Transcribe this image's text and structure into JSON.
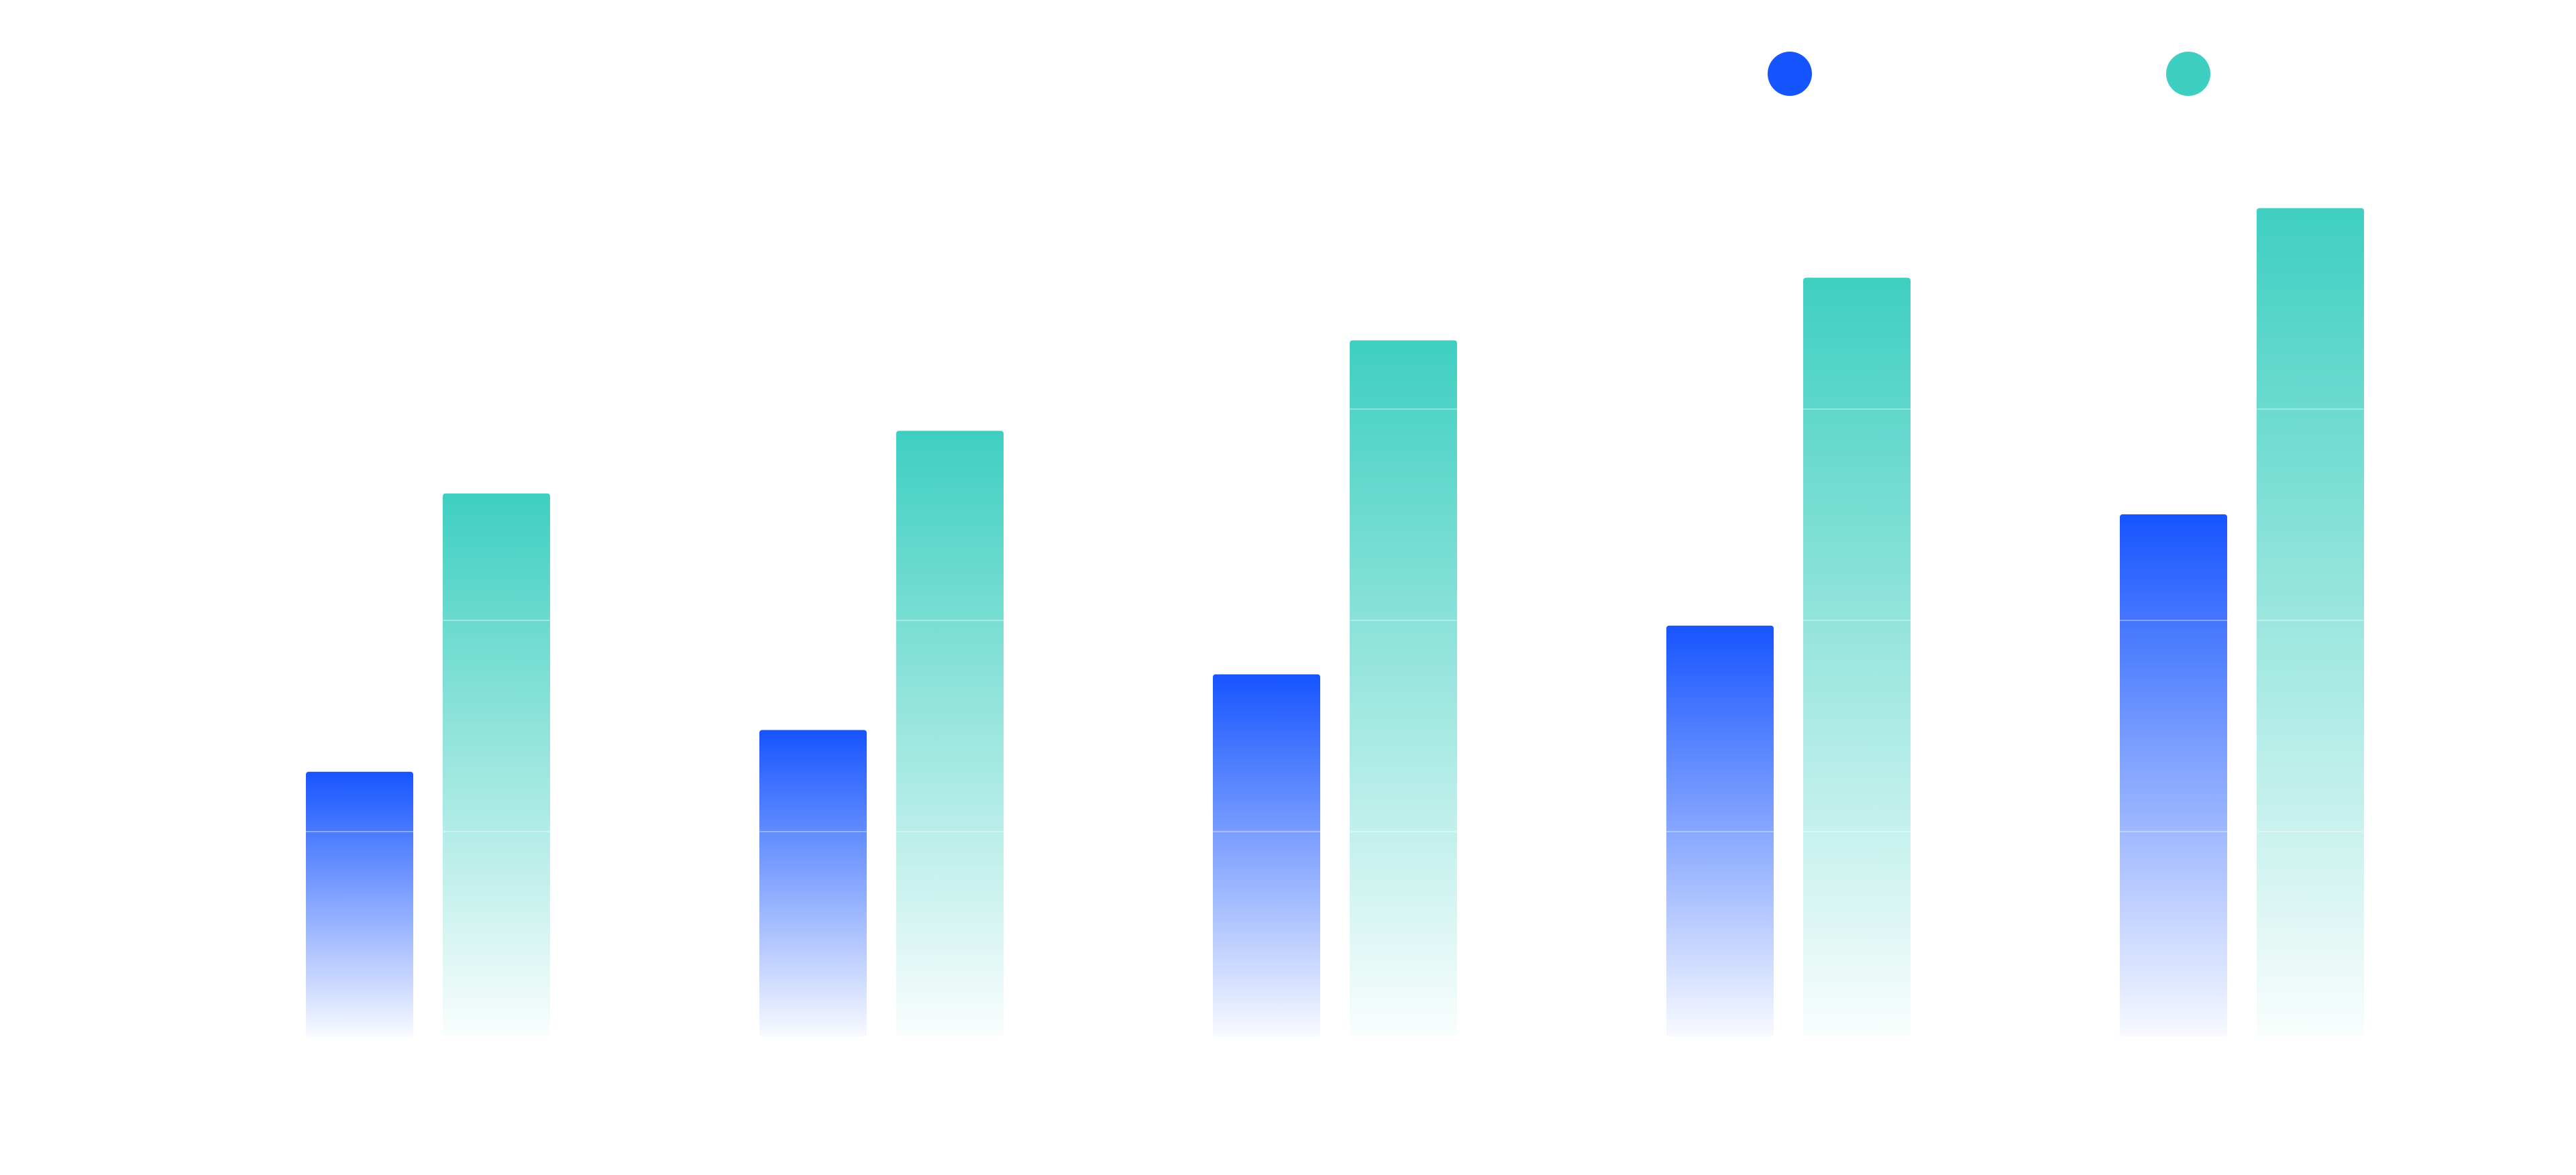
{
  "chart_data": {
    "type": "bar",
    "categories": [
      "",
      "",
      "",
      "",
      ""
    ],
    "series": [
      {
        "color": "#1654FF",
        "values": [
          1.9,
          2.2,
          2.6,
          2.95,
          3.75
        ]
      },
      {
        "color": "#3ECFC1",
        "values": [
          3.9,
          4.35,
          5.0,
          5.45,
          5.95
        ]
      }
    ],
    "ylim": [
      0,
      6.0
    ],
    "grid": true,
    "legend_position": "top-right",
    "title": "",
    "xlabel": "",
    "ylabel": ""
  }
}
